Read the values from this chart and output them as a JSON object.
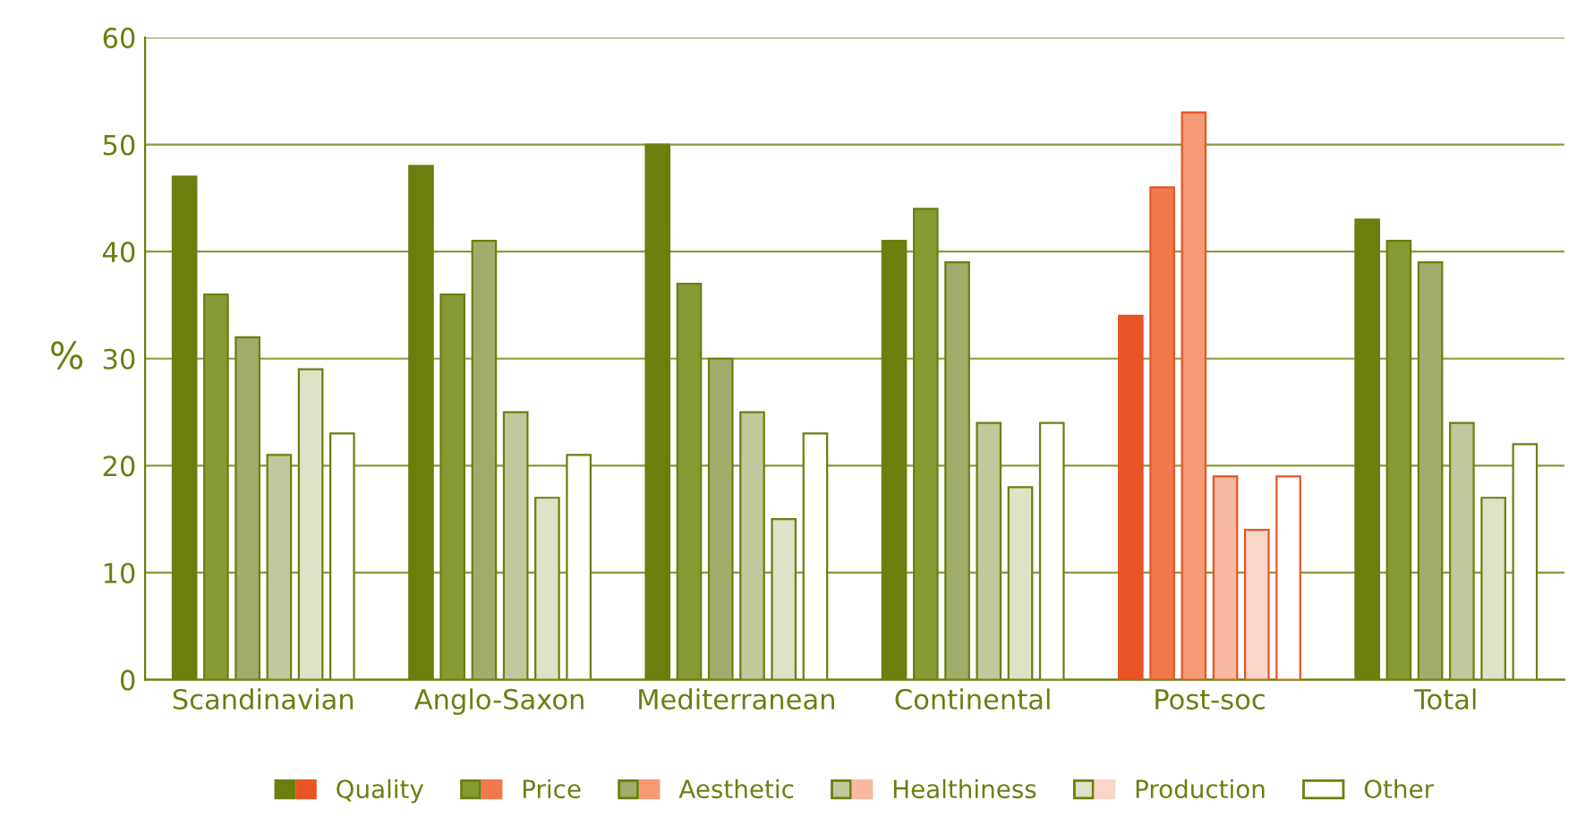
{
  "chart_data": {
    "type": "bar",
    "ylabel": "%",
    "categories": [
      "Scandinavian",
      "Anglo-Saxon",
      "Mediterranean",
      "Continental",
      "Post-soc",
      "Total"
    ],
    "series": [
      {
        "name": "Quality",
        "color": "#6b7f0f",
        "colors": [
          "#6b7f0f",
          "#6b7f0f",
          "#6b7f0f",
          "#6b7f0f",
          "#e85425",
          "#6b7f0f"
        ],
        "values": [
          47,
          48,
          50,
          41,
          34,
          43
        ]
      },
      {
        "name": "Price",
        "color": "#869a33",
        "colors": [
          "#869a33",
          "#869a33",
          "#869a33",
          "#869a33",
          "#f07a4d",
          "#869a33"
        ],
        "values": [
          36,
          36,
          37,
          44,
          46,
          41
        ]
      },
      {
        "name": "Aesthetic",
        "color": "#a0ad6b",
        "colors": [
          "#a0ad6b",
          "#a0ad6b",
          "#a0ad6b",
          "#a0ad6b",
          "#f59a75",
          "#a0ad6b"
        ],
        "values": [
          32,
          41,
          30,
          39,
          53,
          39
        ]
      },
      {
        "name": "Healthiness",
        "color": "#c2c89c",
        "colors": [
          "#c2c89c",
          "#c2c89c",
          "#c2c89c",
          "#c2c89c",
          "#f7b9a0",
          "#c2c89c"
        ],
        "values": [
          21,
          25,
          25,
          24,
          19,
          24
        ]
      },
      {
        "name": "Production",
        "color": "#dfe2c6",
        "colors": [
          "#dfe2c6",
          "#dfe2c6",
          "#dfe2c6",
          "#dfe2c6",
          "#fad6c8",
          "#dfe2c6"
        ],
        "values": [
          29,
          17,
          15,
          18,
          14,
          17
        ]
      },
      {
        "name": "Other",
        "color": "#ffffff",
        "colors": [
          "#ffffff",
          "#ffffff",
          "#ffffff",
          "#ffffff",
          "#ffffff",
          "#ffffff"
        ],
        "values": [
          23,
          21,
          23,
          24,
          19,
          22
        ]
      }
    ],
    "ylim": [
      0,
      60
    ],
    "yticks": [
      0,
      10,
      20,
      30,
      40,
      50,
      60
    ],
    "grid": "y",
    "legend": "bottom"
  }
}
